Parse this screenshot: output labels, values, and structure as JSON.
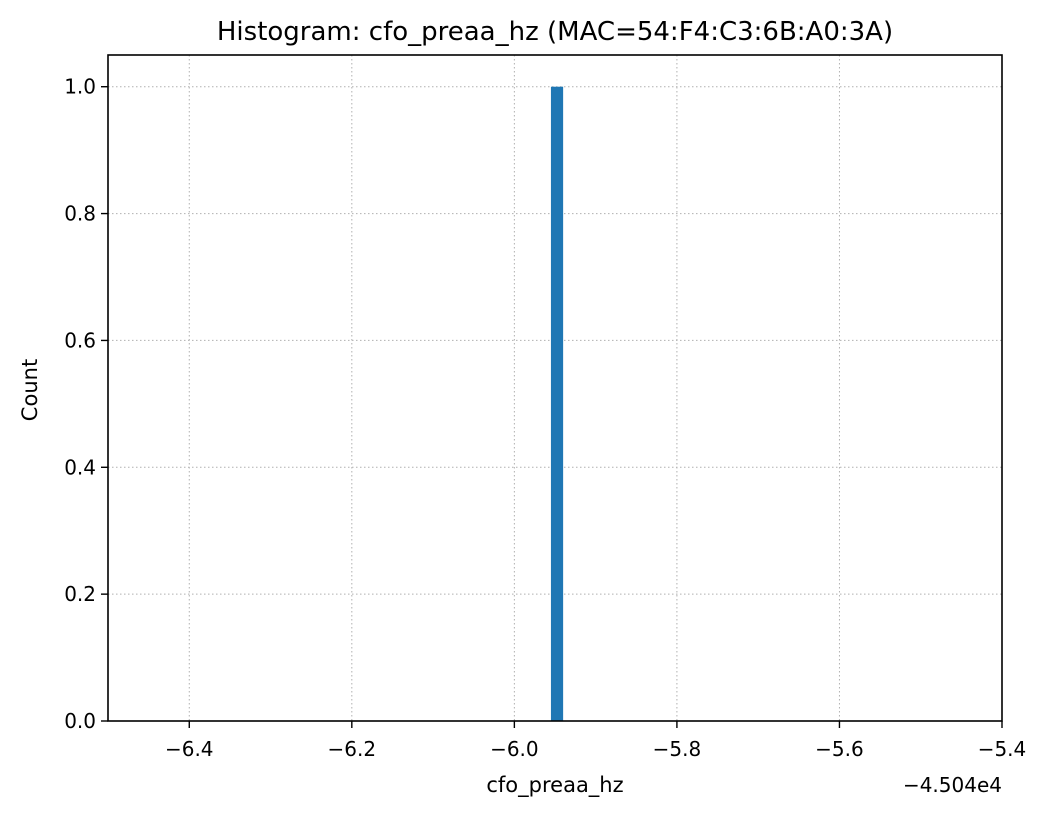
{
  "chart_data": {
    "type": "bar",
    "title": "Histogram: cfo_preaa_hz (MAC=54:F4:C3:6B:A0:3A)",
    "xlabel": "cfo_preaa_hz",
    "ylabel": "Count",
    "x_offset_label": "−4.504e4",
    "xlim": [
      -6.5,
      -5.4
    ],
    "ylim": [
      0,
      1.05
    ],
    "x_ticks": [
      -6.4,
      -6.2,
      -6.0,
      -5.8,
      -5.6,
      -5.4
    ],
    "x_tick_labels": [
      "−6.4",
      "−6.2",
      "−6.0",
      "−5.8",
      "−5.6",
      "−5.4"
    ],
    "y_ticks": [
      0.0,
      0.2,
      0.4,
      0.6,
      0.8,
      1.0
    ],
    "y_tick_labels": [
      "0.0",
      "0.2",
      "0.4",
      "0.6",
      "0.8",
      "1.0"
    ],
    "bars": [
      {
        "x_start": -5.955,
        "x_end": -5.94,
        "count": 1
      }
    ],
    "grid": true,
    "bar_color": "#1f77b4",
    "grid_color": "#b0b0b0"
  }
}
